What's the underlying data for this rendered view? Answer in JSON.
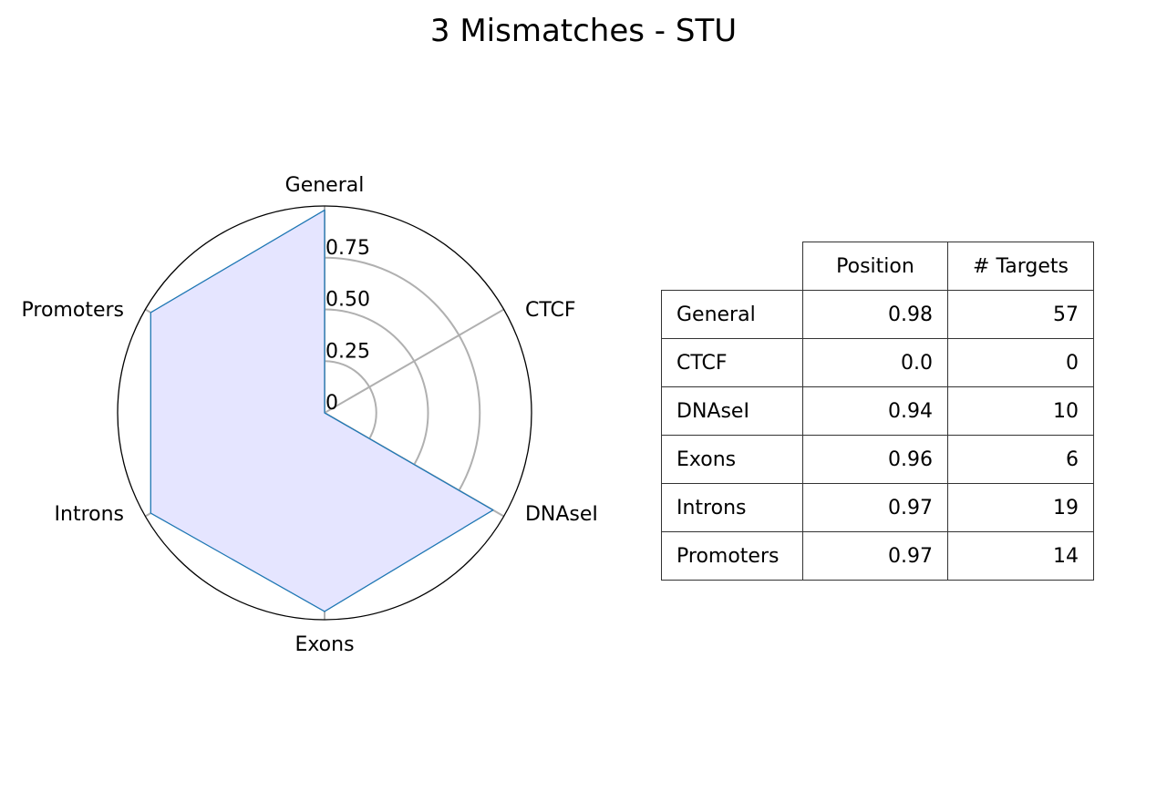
{
  "chart_data": [
    {
      "type": "radar",
      "title": "3 Mismatches - STU",
      "categories": [
        "General",
        "CTCF",
        "DNAseI",
        "Exons",
        "Introns",
        "Promoters"
      ],
      "series": [
        {
          "values": [
            0.98,
            0.0,
            0.94,
            0.96,
            0.97,
            0.97
          ]
        }
      ],
      "rlim": [
        0,
        1
      ],
      "rticks": [
        0,
        0.25,
        0.5,
        0.75
      ],
      "rtick_labels": [
        "0",
        "0.25",
        "0.50",
        "0.75"
      ],
      "grid": true,
      "colors": {
        "line": "#1f77b4",
        "fill": "#e5e5ff",
        "grid": "#b0b0b0",
        "frame": "#000000"
      }
    },
    {
      "type": "table",
      "columns": [
        "Position",
        "# Targets"
      ],
      "rows": [
        {
          "label": "General",
          "position": "0.98",
          "targets": "57"
        },
        {
          "label": "CTCF",
          "position": "0.0",
          "targets": "0"
        },
        {
          "label": "DNAseI",
          "position": "0.94",
          "targets": "10"
        },
        {
          "label": "Exons",
          "position": "0.96",
          "targets": "6"
        },
        {
          "label": "Introns",
          "position": "0.97",
          "targets": "19"
        },
        {
          "label": "Promoters",
          "position": "0.97",
          "targets": "14"
        }
      ]
    }
  ]
}
